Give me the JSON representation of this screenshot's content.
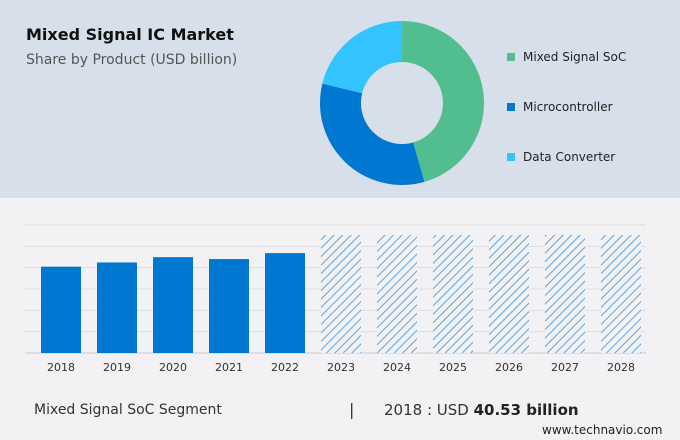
{
  "header": {
    "title": "Mixed Signal IC Market",
    "subtitle": "Share by Product (USD billion)"
  },
  "chart_data": [
    {
      "type": "pie",
      "donut": true,
      "title": "Mixed Signal IC Market",
      "subtitle": "Share by Product (USD billion)",
      "legend_placement": "right",
      "slices": [
        {
          "name": "Mixed Signal SoC",
          "share_percent": 45.6,
          "color": "#52be8f"
        },
        {
          "name": "Microcontroller",
          "share_percent": 33.2,
          "color": "#0077d0"
        },
        {
          "name": "Data Converter",
          "share_percent": 21.2,
          "color": "#33c3ff"
        }
      ]
    },
    {
      "type": "bar",
      "categories": [
        "2018",
        "2019",
        "2020",
        "2021",
        "2022",
        "2023",
        "2024",
        "2025",
        "2026",
        "2027",
        "2028"
      ],
      "values": [
        40.53,
        42.5,
        45.0,
        44.1,
        46.9,
        null,
        null,
        null,
        null,
        null,
        null
      ],
      "forecast": [
        false,
        false,
        false,
        false,
        false,
        true,
        true,
        true,
        true,
        true,
        true
      ],
      "ylabel": "",
      "xlabel": "",
      "grid": true,
      "y_tick_labels": false,
      "ylim": [
        0,
        60
      ],
      "color": "#0077d0"
    }
  ],
  "footer": {
    "segment": "Mixed Signal SoC Segment",
    "separator": "|",
    "year_label": "2018 : USD ",
    "value": "40.53 billion",
    "source": "www.technavio.com"
  }
}
